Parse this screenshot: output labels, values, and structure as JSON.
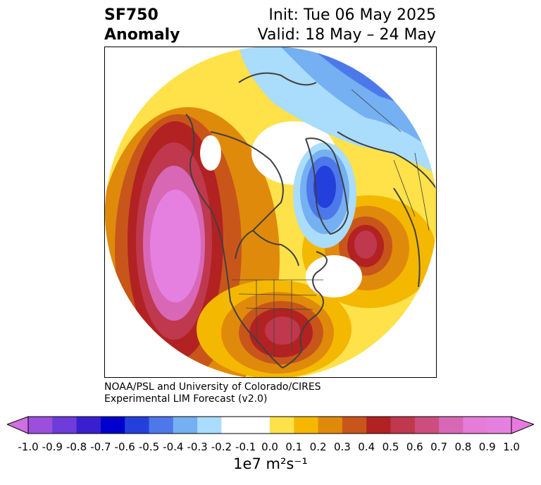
{
  "header": {
    "title_line1": "SF750",
    "title_line2": "Anomaly",
    "init_text": "Init: Tue 06 May 2025",
    "valid_text": "Valid: 18 May – 24 May"
  },
  "credit": {
    "line1": "NOAA/PSL and University of Colorado/CIRES",
    "line2": "Experimental LIM Forecast (v2.0)"
  },
  "colorbar": {
    "unit_label": "1e7 m²s⁻¹",
    "ticks": [
      "-1.0",
      "-0.9",
      "-0.8",
      "-0.7",
      "-0.6",
      "-0.5",
      "-0.4",
      "-0.3",
      "-0.2",
      "-0.1",
      "0.0",
      "0.1",
      "0.2",
      "0.3",
      "0.4",
      "0.5",
      "0.6",
      "0.7",
      "0.8",
      "0.9",
      "1.0"
    ],
    "colors": [
      "#9b4fdc",
      "#6d3cd9",
      "#3a1fd0",
      "#0000cc",
      "#2440dc",
      "#4d78ea",
      "#74b0f2",
      "#aadcfc",
      "#ffffff",
      "#ffffff",
      "#ffe14a",
      "#f4b800",
      "#e08a0c",
      "#c8561a",
      "#b22222",
      "#c0384e",
      "#cc4e7e",
      "#d868b6",
      "#e47cd8",
      "#e680e0"
    ],
    "under_color": "#d070e0",
    "over_color": "#e87ade"
  },
  "map": {
    "projection": "north-polar-stereographic",
    "land_outline_color": "#404040"
  }
}
